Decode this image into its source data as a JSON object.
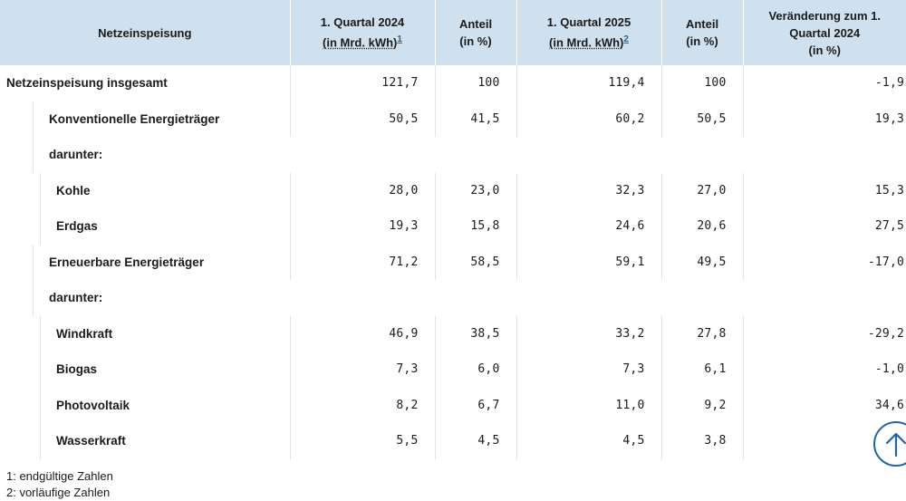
{
  "table": {
    "headers": [
      {
        "title": "Netzeinspeisung",
        "unit": "",
        "footnote": ""
      },
      {
        "title": "1. Quartal 2024",
        "unit": "(in Mrd. kWh)",
        "footnote": "1"
      },
      {
        "title": "Anteil",
        "unit": "(in %)",
        "footnote": ""
      },
      {
        "title": "1. Quartal 2025",
        "unit": "(in Mrd. kWh)",
        "footnote": "2"
      },
      {
        "title": "Anteil",
        "unit": "(in %)",
        "footnote": ""
      },
      {
        "title": "Veränderung zum 1. Quartal 2024",
        "unit": "(in %)",
        "footnote": ""
      }
    ],
    "rows": [
      {
        "label": "Netzeinspeisung insgesamt",
        "values": [
          "121,7",
          "100",
          "119,4",
          "100",
          "-1,9"
        ]
      },
      {
        "label": "Konventionelle Energieträger",
        "values": [
          "50,5",
          "41,5",
          "60,2",
          "50,5",
          "19,3"
        ]
      },
      {
        "label": "darunter:"
      },
      {
        "label": "Kohle",
        "values": [
          "28,0",
          "23,0",
          "32,3",
          "27,0",
          "15,3"
        ]
      },
      {
        "label": "Erdgas",
        "values": [
          "19,3",
          "15,8",
          "24,6",
          "20,6",
          "27,5"
        ]
      },
      {
        "label": "Erneuerbare Energieträger",
        "values": [
          "71,2",
          "58,5",
          "59,1",
          "49,5",
          "-17,0"
        ]
      },
      {
        "label": "darunter:"
      },
      {
        "label": "Windkraft",
        "values": [
          "46,9",
          "38,5",
          "33,2",
          "27,8",
          "-29,2"
        ]
      },
      {
        "label": "Biogas",
        "values": [
          "7,3",
          "6,0",
          "7,3",
          "6,1",
          "-1,0"
        ]
      },
      {
        "label": "Photovoltaik",
        "values": [
          "8,2",
          "6,7",
          "11,0",
          "9,2",
          "34,6"
        ]
      },
      {
        "label": "Wasserkraft",
        "values": [
          "5,5",
          "4,5",
          "4,5",
          "3,8",
          ""
        ]
      }
    ]
  },
  "footnotes": [
    "1: endgültige Zahlen",
    "2: vorläufige Zahlen"
  ],
  "back_to_top": {
    "icon": "arrow-up-icon",
    "color": "#1f63a8"
  }
}
